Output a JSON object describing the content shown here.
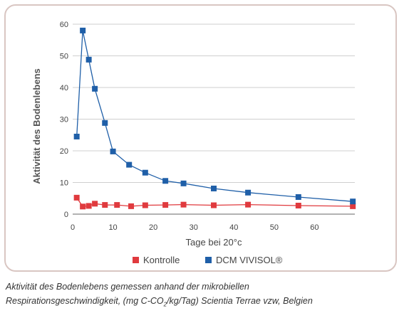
{
  "chart_data": {
    "type": "line",
    "xlabel": "Tage bei 20°c",
    "ylabel": "Aktivität des Bodenlebens",
    "xlim": [
      0,
      70
    ],
    "ylim": [
      0,
      60
    ],
    "x_ticks": [
      0,
      10,
      20,
      30,
      40,
      50,
      60
    ],
    "y_ticks": [
      0,
      10,
      20,
      30,
      40,
      50,
      60
    ],
    "grid": "horizontal",
    "legend_position": "bottom",
    "series": [
      {
        "name": "Kontrolle",
        "color": "#e03a3e",
        "x": [
          1,
          2.5,
          4,
          5.5,
          8,
          11,
          14.5,
          18,
          23,
          27.5,
          35,
          43.5,
          56,
          69.5
        ],
        "y": [
          5.2,
          2.4,
          2.6,
          3.3,
          2.9,
          2.9,
          2.5,
          2.8,
          2.9,
          3.0,
          2.8,
          3.0,
          2.7,
          2.5
        ]
      },
      {
        "name": "DCM VIVISOL®",
        "color": "#1f5fa8",
        "x": [
          1,
          2.5,
          4,
          5.5,
          8,
          10,
          14,
          18,
          23,
          27.5,
          35,
          43.5,
          56,
          69.5
        ],
        "y": [
          24.5,
          58.0,
          48.8,
          39.6,
          28.8,
          19.8,
          15.6,
          13.1,
          10.5,
          9.7,
          8.1,
          6.8,
          5.4,
          4.0
        ]
      }
    ]
  },
  "caption": {
    "line1": "Aktivität des Bodenlebens gemessen anhand der mikrobiellen",
    "line2_pre": "Respirationsgeschwindigkeit, (mg C-CO",
    "line2_sub": "2",
    "line2_post": "/kg/Tag) Scientia Terrae vzw, Belgien"
  }
}
